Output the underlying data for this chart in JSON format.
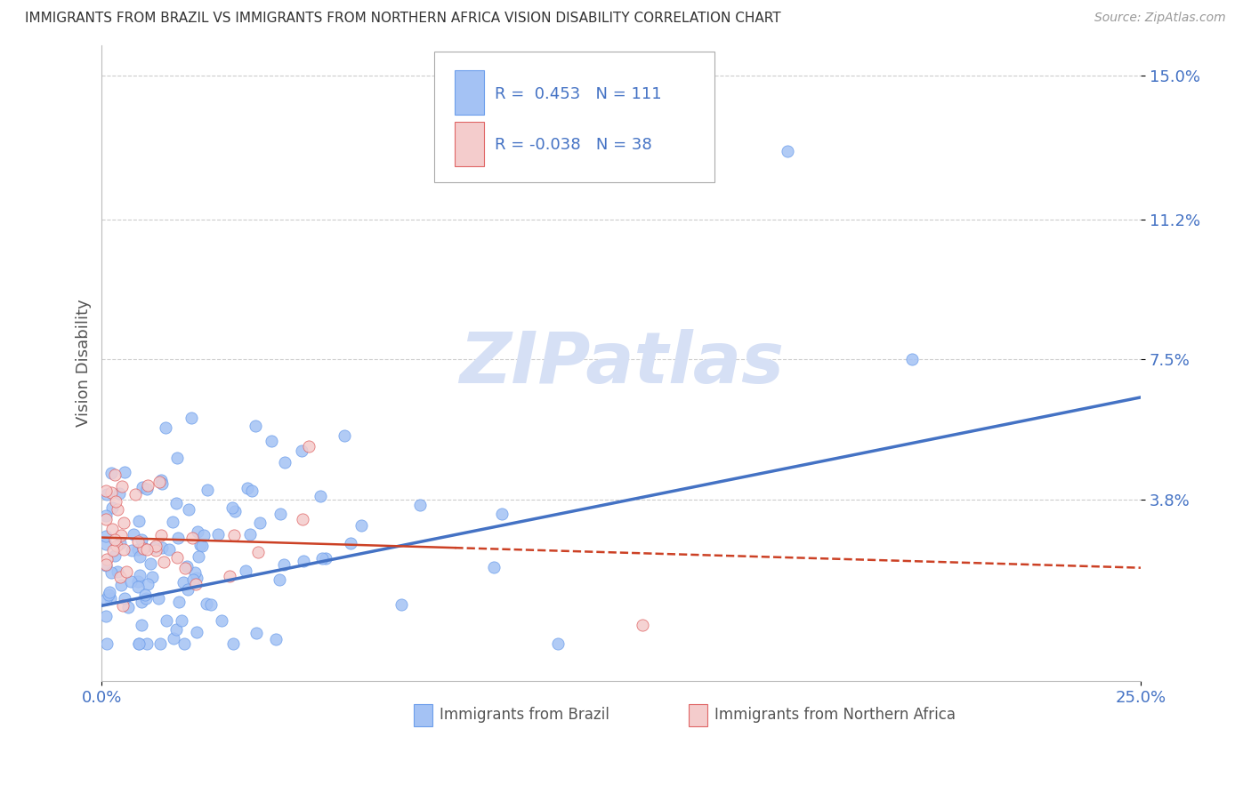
{
  "title": "IMMIGRANTS FROM BRAZIL VS IMMIGRANTS FROM NORTHERN AFRICA VISION DISABILITY CORRELATION CHART",
  "source": "Source: ZipAtlas.com",
  "xlabel_brazil": "Immigrants from Brazil",
  "xlabel_northern_africa": "Immigrants from Northern Africa",
  "ylabel": "Vision Disability",
  "brazil_R": 0.453,
  "brazil_N": 111,
  "northern_africa_R": -0.038,
  "northern_africa_N": 38,
  "xlim": [
    0.0,
    0.25
  ],
  "ylim": [
    -0.01,
    0.158
  ],
  "yticks": [
    0.038,
    0.075,
    0.112,
    0.15
  ],
  "ytick_labels": [
    "3.8%",
    "7.5%",
    "11.2%",
    "15.0%"
  ],
  "xticks": [
    0.0,
    0.25
  ],
  "xtick_labels": [
    "0.0%",
    "25.0%"
  ],
  "blue_color": "#a4c2f4",
  "pink_color": "#f4cccc",
  "blue_edge_color": "#6d9eeb",
  "pink_edge_color": "#e06666",
  "blue_line_color": "#4472c4",
  "pink_line_color": "#cc4125",
  "title_color": "#333333",
  "source_color": "#999999",
  "axis_label_color": "#555555",
  "tick_label_color": "#4472c4",
  "legend_R_color": "#4472c4",
  "watermark_color": "#d6e0f5",
  "brazil_trend_start_y": 0.01,
  "brazil_trend_end_y": 0.065,
  "northern_africa_trend_start_y": 0.028,
  "northern_africa_trend_end_y": 0.02
}
